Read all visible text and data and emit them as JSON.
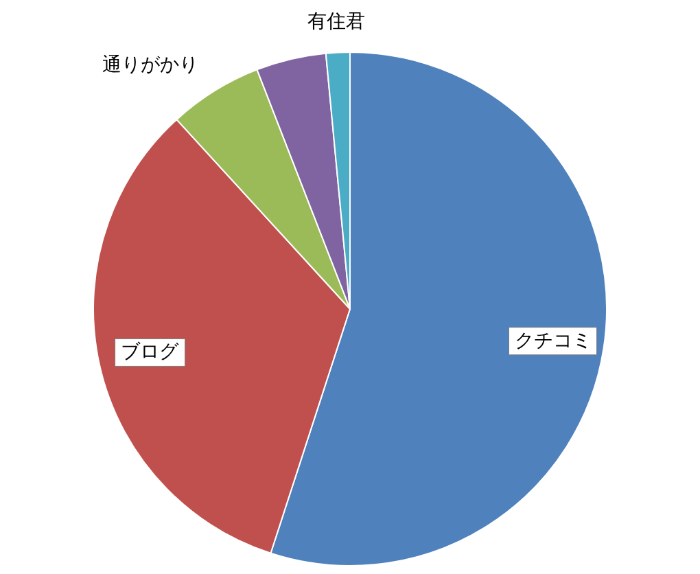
{
  "chart_data": {
    "type": "pie",
    "categories": [
      "クチコミ",
      "ブログ",
      "通りがかり",
      null,
      "有住君"
    ],
    "values": [
      55.0,
      33.2,
      5.9,
      4.4,
      1.5
    ],
    "colors": [
      "#4f81bd",
      "#c0504d",
      "#9bbb59",
      "#8064a2",
      "#4bacc6"
    ]
  }
}
